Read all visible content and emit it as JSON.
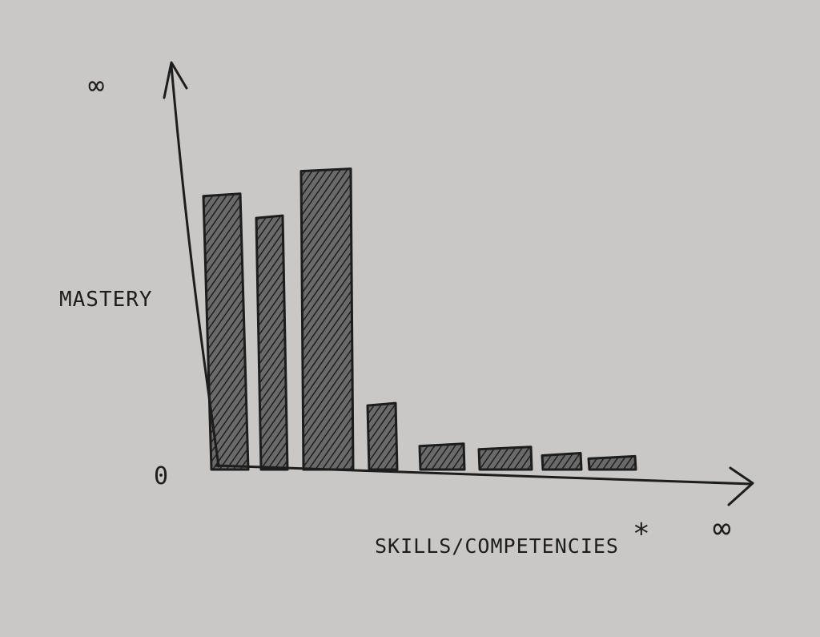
{
  "chart_data": {
    "type": "bar",
    "ylabel": "MASTERY",
    "xlabel": "SKILLS/COMPETENCIES",
    "xlabel_mark": "*",
    "y_axis_top_label": "∞",
    "y_axis_zero_label": "0",
    "x_axis_end_label": "∞",
    "ylim": [
      0,
      100
    ],
    "values": [
      88,
      81,
      96,
      21,
      8,
      7,
      5,
      4
    ],
    "grid": false,
    "legend": "none"
  },
  "colors": {
    "paper": "#c9c8c6",
    "ink": "#1d1d1d",
    "bar_fill": "#6a6a6a"
  }
}
